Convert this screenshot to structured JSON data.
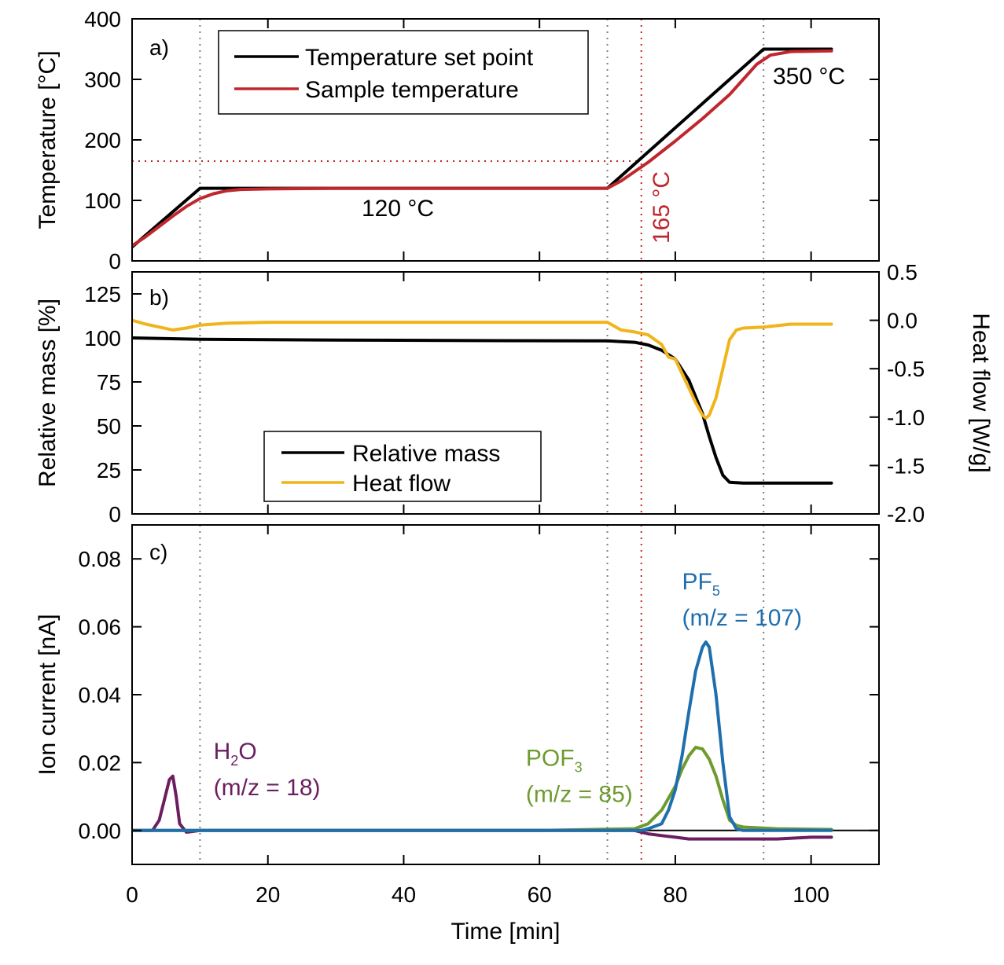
{
  "chart_data": {
    "type": "line",
    "shared_xaxis": {
      "label": "Time [min]",
      "range": [
        0,
        110
      ],
      "ticks": [
        0,
        20,
        40,
        60,
        80,
        100
      ],
      "tick_labels": [
        "0",
        "20",
        "40",
        "60",
        "80",
        "100"
      ]
    },
    "vertical_reference_lines": [
      {
        "x": 10,
        "style": "dotted",
        "color": "#808080"
      },
      {
        "x": 70,
        "style": "dotted",
        "color": "#808080"
      },
      {
        "x": 93,
        "style": "dotted",
        "color": "#808080"
      },
      {
        "x": 75,
        "style": "dotted",
        "color": "#c0272d"
      }
    ],
    "panels": [
      {
        "id": "a",
        "panel_label": "a)",
        "ylabel": "Temperature [°C]",
        "ylim": [
          0,
          400
        ],
        "yticks": [
          0,
          100,
          200,
          300,
          400
        ],
        "ytick_labels": [
          "0",
          "100",
          "200",
          "300",
          "400"
        ],
        "horizontal_reference": {
          "y": 165,
          "x_end": 75,
          "color": "#c0272d",
          "style": "dotted"
        },
        "series": [
          {
            "name": "Temperature set point",
            "color": "#000000",
            "x": [
              0,
              10,
              70,
              93,
              103
            ],
            "y": [
              23,
              120,
              120,
              350,
              350
            ]
          },
          {
            "name": "Sample temperature",
            "color": "#c0272d",
            "x": [
              0,
              2,
              4,
              6,
              8,
              10,
              12,
              14,
              16,
              20,
              30,
              50,
              70,
              72,
              76,
              80,
              84,
              88,
              90,
              92,
              94,
              97,
              103
            ],
            "y": [
              25,
              40,
              57,
              74,
              90,
              103,
              111,
              116,
              118,
              119,
              120,
              120,
              120,
              132,
              163,
              198,
              235,
              275,
              300,
              325,
              340,
              346,
              347
            ]
          }
        ],
        "legend": {
          "position": "top-left",
          "entries": [
            "Temperature set point",
            "Sample temperature"
          ]
        },
        "annotations": [
          {
            "text": "120 °C",
            "x": 40,
            "y": 80,
            "color": "#000000"
          },
          {
            "text": "350 °C",
            "x": 96,
            "y": 320,
            "color": "#000000"
          },
          {
            "text": "165 °C",
            "x": 76,
            "y": 90,
            "color": "#c0272d",
            "rotation": -90
          }
        ]
      },
      {
        "id": "b",
        "panel_label": "b)",
        "ylabel": "Relative mass [%]",
        "ylim": [
          0,
          137.5
        ],
        "yticks": [
          0,
          25,
          50,
          75,
          100,
          125
        ],
        "ytick_labels": [
          "0",
          "25",
          "50",
          "75",
          "100",
          "125"
        ],
        "y2label": "Heat flow [W/g]",
        "y2lim": [
          -2.0,
          0.5
        ],
        "y2ticks": [
          -2.0,
          -1.5,
          -1.0,
          -0.5,
          0.0,
          0.5
        ],
        "y2tick_labels": [
          "-2.0",
          "-1.5",
          "-1.0",
          "-0.5",
          "0.0",
          "0.5"
        ],
        "series": [
          {
            "name": "Relative mass",
            "color": "#000000",
            "axis": "left",
            "x": [
              0,
              5,
              10,
              30,
              50,
              70,
              74,
              76,
              78,
              80,
              82,
              84,
              85,
              86,
              87,
              88,
              90,
              95,
              103
            ],
            "y": [
              100,
              99.6,
              99.2,
              98.8,
              98.5,
              98.3,
              97.5,
              96,
              93,
              88,
              76,
              57,
              44,
              32,
              22,
              18,
              17.5,
              17.5,
              17.5
            ]
          },
          {
            "name": "Heat flow",
            "color": "#f0b41c",
            "axis": "right",
            "x": [
              0,
              2,
              4,
              6,
              8,
              10,
              14,
              20,
              40,
              60,
              70,
              71,
              72,
              74,
              76,
              78,
              79,
              80,
              81,
              82,
              83,
              84,
              84.5,
              85,
              86,
              87,
              88,
              89,
              90,
              93,
              97,
              103
            ],
            "y": [
              0.0,
              -0.04,
              -0.07,
              -0.1,
              -0.08,
              -0.05,
              -0.03,
              -0.02,
              -0.02,
              -0.02,
              -0.02,
              -0.06,
              -0.1,
              -0.12,
              -0.15,
              -0.25,
              -0.38,
              -0.4,
              -0.55,
              -0.7,
              -0.85,
              -0.98,
              -1.01,
              -0.98,
              -0.8,
              -0.5,
              -0.2,
              -0.1,
              -0.08,
              -0.07,
              -0.04,
              -0.04
            ]
          }
        ],
        "legend": {
          "position": "bottom-center",
          "entries": [
            "Relative mass",
            "Heat flow"
          ]
        }
      },
      {
        "id": "c",
        "panel_label": "c)",
        "ylabel": "Ion current [nA]",
        "ylim": [
          -0.01,
          0.09
        ],
        "yticks": [
          0.0,
          0.02,
          0.04,
          0.06,
          0.08
        ],
        "ytick_labels": [
          "0.00",
          "0.02",
          "0.04",
          "0.06",
          "0.08"
        ],
        "zero_line": true,
        "series": [
          {
            "name": "H2O (m/z = 18)",
            "color": "#6b1e60",
            "x": [
              0,
              3,
              4,
              5,
              5.5,
              6,
              6.5,
              7,
              8,
              10,
              20,
              40,
              60,
              74,
              76,
              78,
              80,
              82,
              85,
              90,
              95,
              100,
              103
            ],
            "y": [
              0,
              0,
              0.003,
              0.011,
              0.015,
              0.016,
              0.01,
              0.002,
              -0.0005,
              0,
              0,
              0,
              0,
              0,
              -0.001,
              -0.0015,
              -0.002,
              -0.0025,
              -0.0025,
              -0.0025,
              -0.0025,
              -0.002,
              -0.002
            ]
          },
          {
            "name": "POF3 (m/z = 85)",
            "color": "#6e9b2f",
            "x": [
              0,
              20,
              40,
              60,
              74,
              76,
              78,
              80,
              81,
              82,
              83,
              84,
              85,
              86,
              87,
              88,
              89,
              90,
              95,
              103
            ],
            "y": [
              0,
              0,
              0,
              0,
              0.0005,
              0.002,
              0.006,
              0.013,
              0.018,
              0.022,
              0.0245,
              0.024,
              0.021,
              0.016,
              0.009,
              0.003,
              0.0015,
              0.001,
              0.0005,
              0.0003
            ]
          },
          {
            "name": "PF5 (m/z = 107)",
            "color": "#1f6fae",
            "x": [
              0,
              20,
              40,
              60,
              75,
              76,
              78,
              79,
              80,
              81,
              82,
              83,
              84,
              84.5,
              85,
              86,
              87,
              88,
              89,
              90,
              95,
              103
            ],
            "y": [
              0,
              0,
              0,
              0,
              0,
              0.0005,
              0.002,
              0.006,
              0.012,
              0.022,
              0.035,
              0.047,
              0.054,
              0.0555,
              0.054,
              0.04,
              0.02,
              0.004,
              0.0005,
              0,
              0,
              0
            ]
          }
        ],
        "annotations": [
          {
            "main": "H",
            "sub": "2",
            "tail": "O",
            "line2": "(m/z = 18)",
            "color": "#6b1e60",
            "x": 12,
            "y": 0.021
          },
          {
            "main": "POF",
            "sub": "3",
            "tail": "",
            "line2": "(m/z = 85)",
            "color": "#6e9b2f",
            "x": 58,
            "y": 0.019
          },
          {
            "main": "PF",
            "sub": "5",
            "tail": "",
            "line2": "(m/z = 107)",
            "color": "#1f6fae",
            "x": 81,
            "y": 0.071
          }
        ]
      }
    ]
  }
}
